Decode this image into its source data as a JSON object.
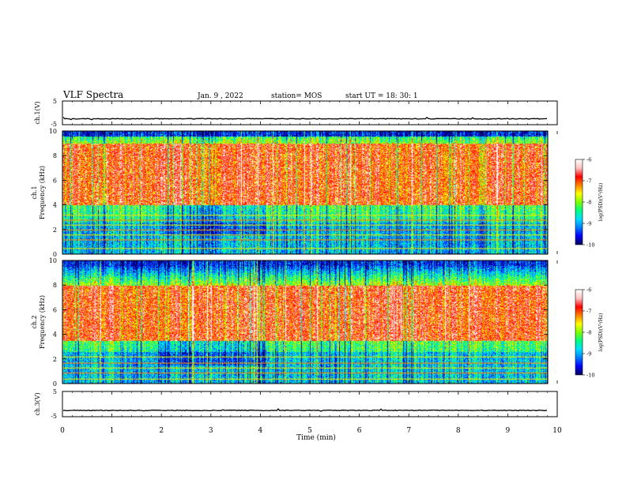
{
  "header": {
    "title": "VLF Spectra",
    "date": "Jan. 9 , 2022",
    "station": "station= MOS",
    "start_ut": "start UT = 18: 30: 1"
  },
  "chart_data": [
    {
      "type": "line",
      "name": "ch1-waveform",
      "ylabel": "ch.1(V)",
      "ylim": [
        -5,
        5
      ],
      "y_ticks": [
        "5",
        "-5"
      ],
      "baseline": -2.5
    },
    {
      "type": "heatmap",
      "name": "ch1-spectrogram",
      "ylabel": "ch.1\nFrequency (kHz)",
      "ylim": [
        0,
        10
      ],
      "y_ticks": [
        "0",
        "2",
        "4",
        "6",
        "8",
        "10"
      ],
      "colorbar": {
        "label": "log(PSD)(V²/Hz)",
        "range": [
          -10,
          -6
        ],
        "ticks": [
          "-6",
          "-7",
          "-8",
          "-9",
          "-10"
        ]
      },
      "intense_band_khz": [
        4,
        9
      ],
      "narrowband_lines_khz": [
        0.5,
        1.2,
        1.6,
        2.0,
        2.4,
        2.8,
        3.2
      ]
    },
    {
      "type": "heatmap",
      "name": "ch2-spectrogram",
      "ylabel": "ch.2\nFrequency (kHz)",
      "ylim": [
        0,
        10
      ],
      "y_ticks": [
        "0",
        "2",
        "4",
        "6",
        "8",
        "10"
      ],
      "colorbar": {
        "label": "log(PSD)(V²/Hz)",
        "range": [
          -10,
          -6
        ],
        "ticks": [
          "-6",
          "-7",
          "-8",
          "-9",
          "-10"
        ]
      },
      "intense_band_khz": [
        3.5,
        8
      ],
      "narrowband_lines_khz": [
        0.4,
        0.9,
        1.3,
        1.7,
        2.2
      ]
    },
    {
      "type": "line",
      "name": "ch3-waveform",
      "ylabel": "ch.3(V)",
      "ylim": [
        -5,
        5
      ],
      "y_ticks": [
        "5",
        "-5"
      ],
      "baseline": -2.5
    }
  ],
  "x_axis": {
    "label": "Time (min)",
    "xlim": [
      0,
      10
    ],
    "ticks": [
      "0",
      "1",
      "2",
      "3",
      "4",
      "5",
      "6",
      "7",
      "8",
      "9",
      "10"
    ]
  },
  "colors": {
    "scale": [
      "#000060",
      "#0000ff",
      "#0080ff",
      "#00e0ff",
      "#00ff80",
      "#80ff00",
      "#ffff00",
      "#ff8000",
      "#ff0000",
      "#ffc0c0",
      "#ffffff"
    ]
  }
}
